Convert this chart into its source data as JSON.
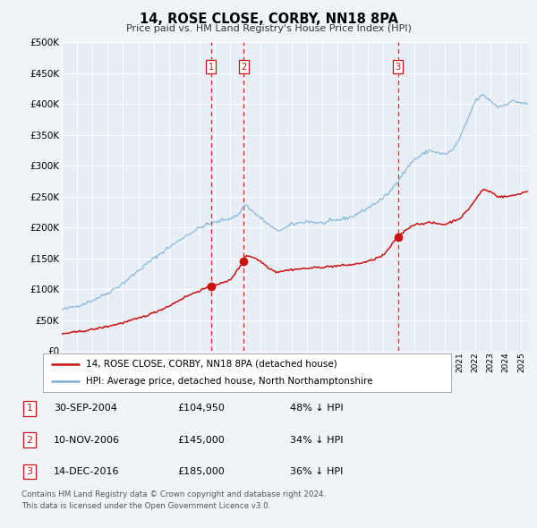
{
  "title": "14, ROSE CLOSE, CORBY, NN18 8PA",
  "subtitle": "Price paid vs. HM Land Registry's House Price Index (HPI)",
  "legend_line1": "14, ROSE CLOSE, CORBY, NN18 8PA (detached house)",
  "legend_line2": "HPI: Average price, detached house, North Northamptonshire",
  "footnote1": "Contains HM Land Registry data © Crown copyright and database right 2024.",
  "footnote2": "This data is licensed under the Open Government Licence v3.0.",
  "transactions": [
    {
      "num": 1,
      "date": "30-SEP-2004",
      "price_str": "£104,950",
      "pct": "48% ↓ HPI"
    },
    {
      "num": 2,
      "date": "10-NOV-2006",
      "price_str": "£145,000",
      "pct": "34% ↓ HPI"
    },
    {
      "num": 3,
      "date": "14-DEC-2016",
      "price_str": "£185,000",
      "pct": "36% ↓ HPI"
    }
  ],
  "transaction_dates_num": [
    2004.75,
    2006.865,
    2016.96
  ],
  "transaction_prices": [
    104950,
    145000,
    185000
  ],
  "hpi_color": "#7ab0d4",
  "price_color": "#cc1111",
  "bg_color": "#f0f4f8",
  "plot_bg": "#e8eef5",
  "grid_color": "#ffffff",
  "ylim": [
    0,
    500000
  ],
  "yticks": [
    0,
    50000,
    100000,
    150000,
    200000,
    250000,
    300000,
    350000,
    400000,
    450000,
    500000
  ],
  "hpi_anchors_t": [
    1995.0,
    1996.0,
    1997.0,
    1998.0,
    1999.0,
    2000.0,
    2001.0,
    2002.0,
    2003.0,
    2004.0,
    2004.5,
    2005.0,
    2005.5,
    2006.0,
    2006.5,
    2007.0,
    2007.5,
    2008.0,
    2008.5,
    2009.0,
    2009.5,
    2010.0,
    2011.0,
    2012.0,
    2013.0,
    2014.0,
    2015.0,
    2016.0,
    2016.5,
    2017.0,
    2017.5,
    2018.0,
    2019.0,
    2020.0,
    2020.5,
    2021.0,
    2021.5,
    2022.0,
    2022.5,
    2023.0,
    2023.5,
    2024.0,
    2024.5,
    2025.3
  ],
  "hpi_anchors_v": [
    67000,
    73000,
    82000,
    94000,
    110000,
    130000,
    150000,
    168000,
    185000,
    200000,
    205000,
    208000,
    212000,
    215000,
    220000,
    238000,
    225000,
    215000,
    205000,
    195000,
    198000,
    205000,
    210000,
    207000,
    212000,
    218000,
    232000,
    248000,
    260000,
    278000,
    295000,
    310000,
    325000,
    318000,
    325000,
    345000,
    375000,
    405000,
    415000,
    405000,
    395000,
    400000,
    405000,
    400000
  ],
  "price_anchors_t": [
    1995.0,
    1996.0,
    1997.0,
    1998.0,
    1999.0,
    2000.0,
    2001.0,
    2002.0,
    2003.0,
    2004.0,
    2004.75,
    2005.0,
    2005.5,
    2006.0,
    2006.865,
    2007.0,
    2007.5,
    2008.0,
    2008.5,
    2009.0,
    2010.0,
    2011.0,
    2012.0,
    2013.0,
    2014.0,
    2015.0,
    2016.0,
    2016.96,
    2017.5,
    2018.0,
    2019.0,
    2020.0,
    2021.0,
    2021.5,
    2022.0,
    2022.5,
    2023.0,
    2023.5,
    2024.0,
    2024.5,
    2025.3
  ],
  "price_anchors_v": [
    28000,
    31000,
    35000,
    40000,
    46000,
    53000,
    62000,
    73000,
    87000,
    98000,
    104950,
    108000,
    110000,
    115000,
    145000,
    155000,
    152000,
    145000,
    135000,
    128000,
    132000,
    134000,
    136000,
    138000,
    140000,
    145000,
    155000,
    185000,
    197000,
    205000,
    208000,
    205000,
    215000,
    228000,
    245000,
    262000,
    258000,
    250000,
    250000,
    252000,
    258000
  ]
}
